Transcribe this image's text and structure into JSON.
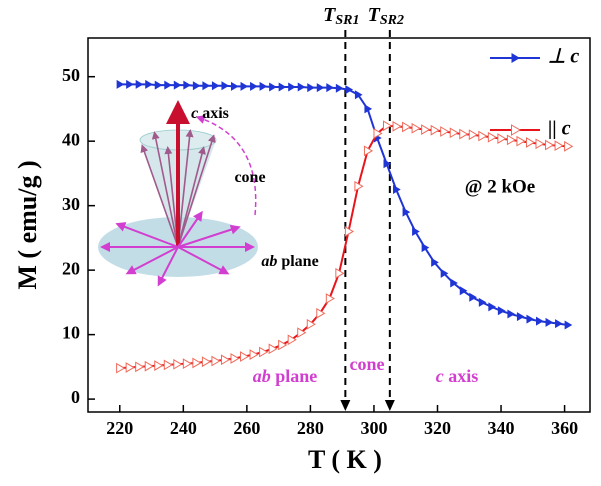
{
  "chart_data": {
    "type": "line",
    "x_label": "T ( K )",
    "y_label": "M ( emu/g )",
    "xlim": [
      210,
      368
    ],
    "ylim": [
      -2,
      56
    ],
    "xticks": [
      220,
      240,
      260,
      280,
      300,
      320,
      340,
      360
    ],
    "yticks": [
      0,
      10,
      20,
      30,
      40,
      50
    ],
    "x": [
      220,
      223,
      226,
      229,
      232,
      235,
      238,
      241,
      244,
      247,
      250,
      253,
      256,
      259,
      262,
      265,
      268,
      271,
      274,
      277,
      280,
      283,
      286,
      289,
      292,
      295,
      298,
      301,
      304,
      307,
      310,
      313,
      316,
      319,
      322,
      325,
      328,
      331,
      334,
      337,
      340,
      343,
      346,
      349,
      352,
      355,
      358,
      361
    ],
    "series": [
      {
        "name": "⊥ c",
        "color": "#1f35d6",
        "marker_filled": true,
        "values": [
          48.8,
          48.8,
          48.8,
          48.8,
          48.7,
          48.7,
          48.7,
          48.7,
          48.6,
          48.6,
          48.6,
          48.6,
          48.5,
          48.5,
          48.5,
          48.5,
          48.4,
          48.4,
          48.4,
          48.4,
          48.3,
          48.3,
          48.3,
          48.2,
          48.0,
          47.2,
          45.0,
          40.5,
          36.5,
          32.5,
          29.0,
          26.0,
          23.5,
          21.2,
          19.5,
          18.0,
          16.8,
          15.8,
          15.0,
          14.3,
          13.7,
          13.2,
          12.8,
          12.4,
          12.1,
          11.9,
          11.7,
          11.5
        ]
      },
      {
        "name": "|| c",
        "color": "#e8141b",
        "marker_filled": false,
        "values": [
          4.8,
          4.9,
          5.0,
          5.1,
          5.2,
          5.3,
          5.4,
          5.5,
          5.6,
          5.8,
          5.9,
          6.1,
          6.3,
          6.6,
          6.9,
          7.3,
          7.8,
          8.4,
          9.2,
          10.3,
          11.6,
          13.3,
          15.6,
          19.5,
          26.0,
          33.0,
          38.5,
          41.2,
          42.4,
          42.3,
          42.2,
          42.0,
          41.8,
          41.7,
          41.5,
          41.3,
          41.1,
          41.0,
          40.8,
          40.6,
          40.4,
          40.2,
          40.0,
          39.8,
          39.6,
          39.4,
          39.3,
          39.2
        ]
      }
    ],
    "transitions": [
      {
        "x": 291,
        "symbol": "T",
        "sub": "SR1"
      },
      {
        "x": 305,
        "symbol": "T",
        "sub": "SR2"
      }
    ],
    "region_labels": [
      {
        "italic": "ab",
        "text": " plane"
      },
      {
        "italic": "",
        "text": "cone"
      },
      {
        "italic": "c",
        "text": " axis"
      }
    ],
    "field_label": "@ 2 kOe",
    "inset_labels": [
      {
        "italic": "c",
        "text": " axis"
      },
      {
        "italic": "",
        "text": "cone"
      },
      {
        "italic": "ab",
        "text": " plane"
      }
    ]
  }
}
